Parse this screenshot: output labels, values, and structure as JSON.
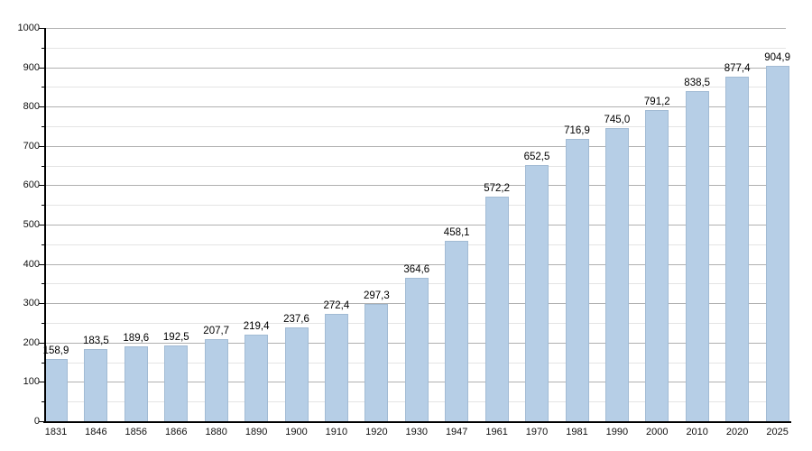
{
  "chart_data": {
    "type": "bar",
    "title": "",
    "xlabel": "",
    "ylabel": "",
    "categories": [
      "1831",
      "1846",
      "1856",
      "1866",
      "1880",
      "1890",
      "1900",
      "1910",
      "1920",
      "1930",
      "1947",
      "1961",
      "1970",
      "1981",
      "1990",
      "2000",
      "2010",
      "2020",
      "2025"
    ],
    "values": [
      158.9,
      183.5,
      189.6,
      192.5,
      207.7,
      219.4,
      237.6,
      272.4,
      297.3,
      364.6,
      458.1,
      572.2,
      652.5,
      716.9,
      745.0,
      791.2,
      838.5,
      877.4,
      904.9
    ],
    "value_labels": [
      "158,9",
      "183,5",
      "189,6",
      "192,5",
      "207,7",
      "219,4",
      "237,6",
      "272,4",
      "297,3",
      "364,6",
      "458,1",
      "572,2",
      "652,5",
      "716,9",
      "745,0",
      "791,2",
      "838,5",
      "877,4",
      "904,9"
    ],
    "ylim": [
      0,
      1000
    ],
    "y_tick_labels": [
      "0",
      "100",
      "200",
      "300",
      "400",
      "500",
      "600",
      "700",
      "800",
      "900",
      "1000"
    ],
    "y_major_step": 100,
    "y_minor_step": 50,
    "grid": "horizontal, major and minor lines",
    "legend_position": "none",
    "colors": {
      "bar_fill": "#b6cee6",
      "bar_border": "#a2bbd4",
      "grid_major": "#b0b0b0",
      "grid_minor": "#e4e4e4",
      "axis": "#000000",
      "text": "#111111",
      "background": "#ffffff"
    }
  }
}
